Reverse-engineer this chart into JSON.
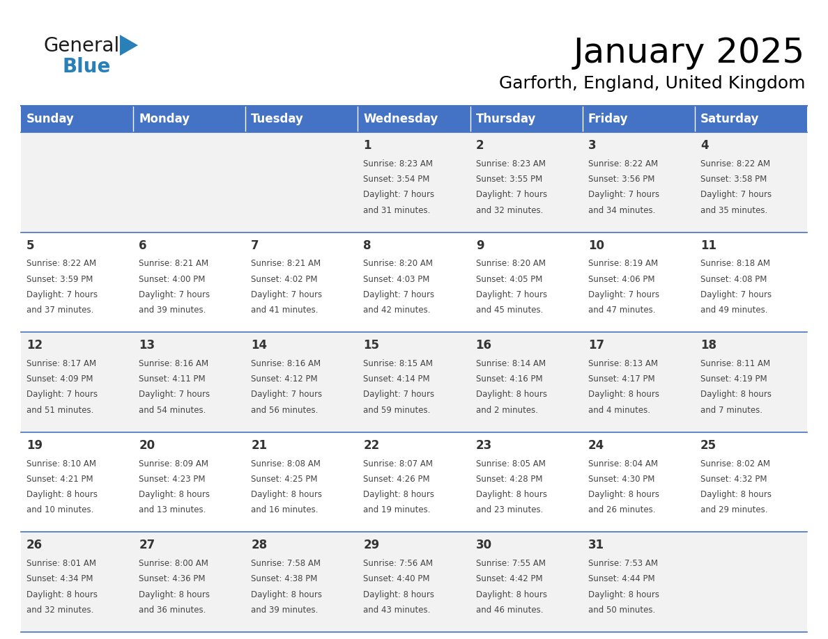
{
  "title": "January 2025",
  "subtitle": "Garforth, England, United Kingdom",
  "days_of_week": [
    "Sunday",
    "Monday",
    "Tuesday",
    "Wednesday",
    "Thursday",
    "Friday",
    "Saturday"
  ],
  "header_bg": "#4472C4",
  "header_text": "#FFFFFF",
  "cell_bg_light": "#F2F2F2",
  "cell_bg_white": "#FFFFFF",
  "cell_border_color": "#4472C4",
  "day_number_color": "#333333",
  "text_color": "#444444",
  "calendar_data": [
    [
      null,
      null,
      null,
      {
        "day": 1,
        "sunrise": "8:23 AM",
        "sunset": "3:54 PM",
        "daylight": "7 hours",
        "daylight2": "and 31 minutes."
      },
      {
        "day": 2,
        "sunrise": "8:23 AM",
        "sunset": "3:55 PM",
        "daylight": "7 hours",
        "daylight2": "and 32 minutes."
      },
      {
        "day": 3,
        "sunrise": "8:22 AM",
        "sunset": "3:56 PM",
        "daylight": "7 hours",
        "daylight2": "and 34 minutes."
      },
      {
        "day": 4,
        "sunrise": "8:22 AM",
        "sunset": "3:58 PM",
        "daylight": "7 hours",
        "daylight2": "and 35 minutes."
      }
    ],
    [
      {
        "day": 5,
        "sunrise": "8:22 AM",
        "sunset": "3:59 PM",
        "daylight": "7 hours",
        "daylight2": "and 37 minutes."
      },
      {
        "day": 6,
        "sunrise": "8:21 AM",
        "sunset": "4:00 PM",
        "daylight": "7 hours",
        "daylight2": "and 39 minutes."
      },
      {
        "day": 7,
        "sunrise": "8:21 AM",
        "sunset": "4:02 PM",
        "daylight": "7 hours",
        "daylight2": "and 41 minutes."
      },
      {
        "day": 8,
        "sunrise": "8:20 AM",
        "sunset": "4:03 PM",
        "daylight": "7 hours",
        "daylight2": "and 42 minutes."
      },
      {
        "day": 9,
        "sunrise": "8:20 AM",
        "sunset": "4:05 PM",
        "daylight": "7 hours",
        "daylight2": "and 45 minutes."
      },
      {
        "day": 10,
        "sunrise": "8:19 AM",
        "sunset": "4:06 PM",
        "daylight": "7 hours",
        "daylight2": "and 47 minutes."
      },
      {
        "day": 11,
        "sunrise": "8:18 AM",
        "sunset": "4:08 PM",
        "daylight": "7 hours",
        "daylight2": "and 49 minutes."
      }
    ],
    [
      {
        "day": 12,
        "sunrise": "8:17 AM",
        "sunset": "4:09 PM",
        "daylight": "7 hours",
        "daylight2": "and 51 minutes."
      },
      {
        "day": 13,
        "sunrise": "8:16 AM",
        "sunset": "4:11 PM",
        "daylight": "7 hours",
        "daylight2": "and 54 minutes."
      },
      {
        "day": 14,
        "sunrise": "8:16 AM",
        "sunset": "4:12 PM",
        "daylight": "7 hours",
        "daylight2": "and 56 minutes."
      },
      {
        "day": 15,
        "sunrise": "8:15 AM",
        "sunset": "4:14 PM",
        "daylight": "7 hours",
        "daylight2": "and 59 minutes."
      },
      {
        "day": 16,
        "sunrise": "8:14 AM",
        "sunset": "4:16 PM",
        "daylight": "8 hours",
        "daylight2": "and 2 minutes."
      },
      {
        "day": 17,
        "sunrise": "8:13 AM",
        "sunset": "4:17 PM",
        "daylight": "8 hours",
        "daylight2": "and 4 minutes."
      },
      {
        "day": 18,
        "sunrise": "8:11 AM",
        "sunset": "4:19 PM",
        "daylight": "8 hours",
        "daylight2": "and 7 minutes."
      }
    ],
    [
      {
        "day": 19,
        "sunrise": "8:10 AM",
        "sunset": "4:21 PM",
        "daylight": "8 hours",
        "daylight2": "and 10 minutes."
      },
      {
        "day": 20,
        "sunrise": "8:09 AM",
        "sunset": "4:23 PM",
        "daylight": "8 hours",
        "daylight2": "and 13 minutes."
      },
      {
        "day": 21,
        "sunrise": "8:08 AM",
        "sunset": "4:25 PM",
        "daylight": "8 hours",
        "daylight2": "and 16 minutes."
      },
      {
        "day": 22,
        "sunrise": "8:07 AM",
        "sunset": "4:26 PM",
        "daylight": "8 hours",
        "daylight2": "and 19 minutes."
      },
      {
        "day": 23,
        "sunrise": "8:05 AM",
        "sunset": "4:28 PM",
        "daylight": "8 hours",
        "daylight2": "and 23 minutes."
      },
      {
        "day": 24,
        "sunrise": "8:04 AM",
        "sunset": "4:30 PM",
        "daylight": "8 hours",
        "daylight2": "and 26 minutes."
      },
      {
        "day": 25,
        "sunrise": "8:02 AM",
        "sunset": "4:32 PM",
        "daylight": "8 hours",
        "daylight2": "and 29 minutes."
      }
    ],
    [
      {
        "day": 26,
        "sunrise": "8:01 AM",
        "sunset": "4:34 PM",
        "daylight": "8 hours",
        "daylight2": "and 32 minutes."
      },
      {
        "day": 27,
        "sunrise": "8:00 AM",
        "sunset": "4:36 PM",
        "daylight": "8 hours",
        "daylight2": "and 36 minutes."
      },
      {
        "day": 28,
        "sunrise": "7:58 AM",
        "sunset": "4:38 PM",
        "daylight": "8 hours",
        "daylight2": "and 39 minutes."
      },
      {
        "day": 29,
        "sunrise": "7:56 AM",
        "sunset": "4:40 PM",
        "daylight": "8 hours",
        "daylight2": "and 43 minutes."
      },
      {
        "day": 30,
        "sunrise": "7:55 AM",
        "sunset": "4:42 PM",
        "daylight": "8 hours",
        "daylight2": "and 46 minutes."
      },
      {
        "day": 31,
        "sunrise": "7:53 AM",
        "sunset": "4:44 PM",
        "daylight": "8 hours",
        "daylight2": "and 50 minutes."
      },
      null
    ]
  ],
  "logo_general_color": "#1a1a1a",
  "logo_blue_color": "#2980B9",
  "logo_triangle_color": "#2980B9",
  "title_fontsize": 36,
  "subtitle_fontsize": 18,
  "header_fontsize": 12,
  "day_num_fontsize": 12,
  "cell_fontsize": 8.5
}
